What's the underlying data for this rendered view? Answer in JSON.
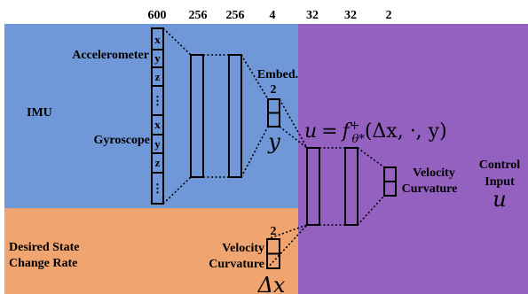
{
  "layer_sizes": [
    "600",
    "256",
    "256",
    "4",
    "32",
    "32",
    "2"
  ],
  "regions": {
    "imu": {
      "label": "IMU",
      "color": "#7097d7"
    },
    "desired": {
      "label_line1": "Desired State",
      "label_line2": "Change Rate",
      "color": "#f0a46f"
    },
    "control": {
      "label_line1": "Control",
      "label_line2": "Input",
      "symbol": "u",
      "color": "#9461c1"
    }
  },
  "sensors": {
    "accelerometer": "Accelerometer",
    "gyroscope": "Gyroscope"
  },
  "input_cells": {
    "accelerometer": [
      "x",
      "y",
      "z",
      "⋮"
    ],
    "gyroscope": [
      "x",
      "y",
      "z",
      "⋮"
    ]
  },
  "embedding": {
    "label": "Embed.",
    "size": "2",
    "symbol": "y"
  },
  "formula": {
    "lhs": "u",
    "equals": "=",
    "f": "f",
    "sup": "+",
    "sub": "θ*",
    "args": "(Δx, ·, y)"
  },
  "desired_inputs": {
    "size": "2",
    "line1": "Velocity",
    "line2": "Curvature",
    "symbol": "Δx"
  },
  "outputs": {
    "line1": "Velocity",
    "line2": "Curvature"
  }
}
